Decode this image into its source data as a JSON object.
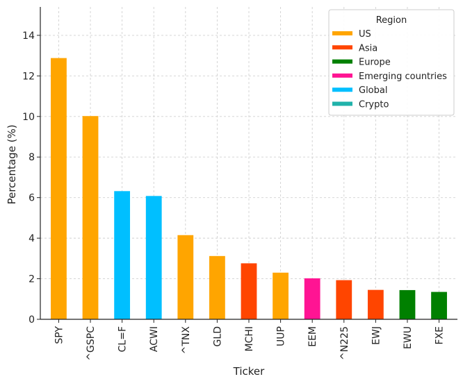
{
  "chart_data": {
    "type": "bar",
    "title": "",
    "xlabel": "Ticker",
    "ylabel": "Percentage (%)",
    "ylim": [
      0,
      15.4
    ],
    "yticks": [
      0,
      2,
      4,
      6,
      8,
      10,
      12,
      14
    ],
    "grid": true,
    "legend": {
      "title": "Region",
      "placement": "top-right",
      "entries": [
        {
          "label": "US",
          "color": "#FFA500"
        },
        {
          "label": "Asia",
          "color": "#FF4500"
        },
        {
          "label": "Europe",
          "color": "#008000"
        },
        {
          "label": "Emerging countries",
          "color": "#FF1493"
        },
        {
          "label": "Global",
          "color": "#00BFFF"
        },
        {
          "label": "Crypto",
          "color": "#20B2AA"
        }
      ]
    },
    "categories": [
      "SPY",
      "^GSPC",
      "CL=F",
      "ACWI",
      "^TNX",
      "GLD",
      "MCHI",
      "UUP",
      "EEM",
      "^N225",
      "EWJ",
      "EWU",
      "FXE"
    ],
    "values": [
      12.88,
      10.02,
      6.32,
      6.08,
      4.15,
      3.12,
      2.76,
      2.3,
      2.02,
      1.93,
      1.45,
      1.44,
      1.35
    ],
    "regions": [
      "US",
      "US",
      "Global",
      "Global",
      "US",
      "US",
      "Asia",
      "US",
      "Emerging countries",
      "Asia",
      "Asia",
      "Europe",
      "Europe"
    ]
  }
}
